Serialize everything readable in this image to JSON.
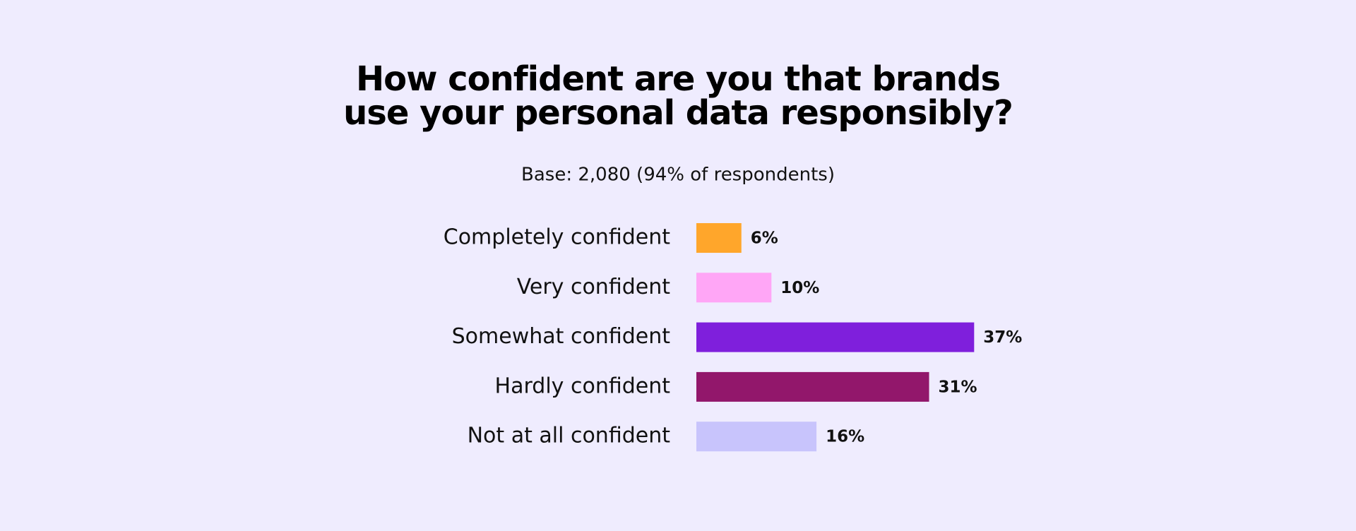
{
  "chart_data": {
    "type": "hbar",
    "title": "How confident are you that brands use your personal data responsibly?",
    "subtitle": "Base: 2,080 (94% of respondents)",
    "categories": [
      "Completely confident",
      "Very confident",
      "Somewhat confident",
      "Hardly confident",
      "Not at all confident"
    ],
    "values": [
      6,
      10,
      37,
      31,
      16
    ],
    "value_labels": [
      "6%",
      "10%",
      "37%",
      "31%",
      "16%"
    ],
    "colors": [
      "#ffa62b",
      "#ffa6f6",
      "#7f1fdc",
      "#92176b",
      "#c8c4fc"
    ]
  }
}
